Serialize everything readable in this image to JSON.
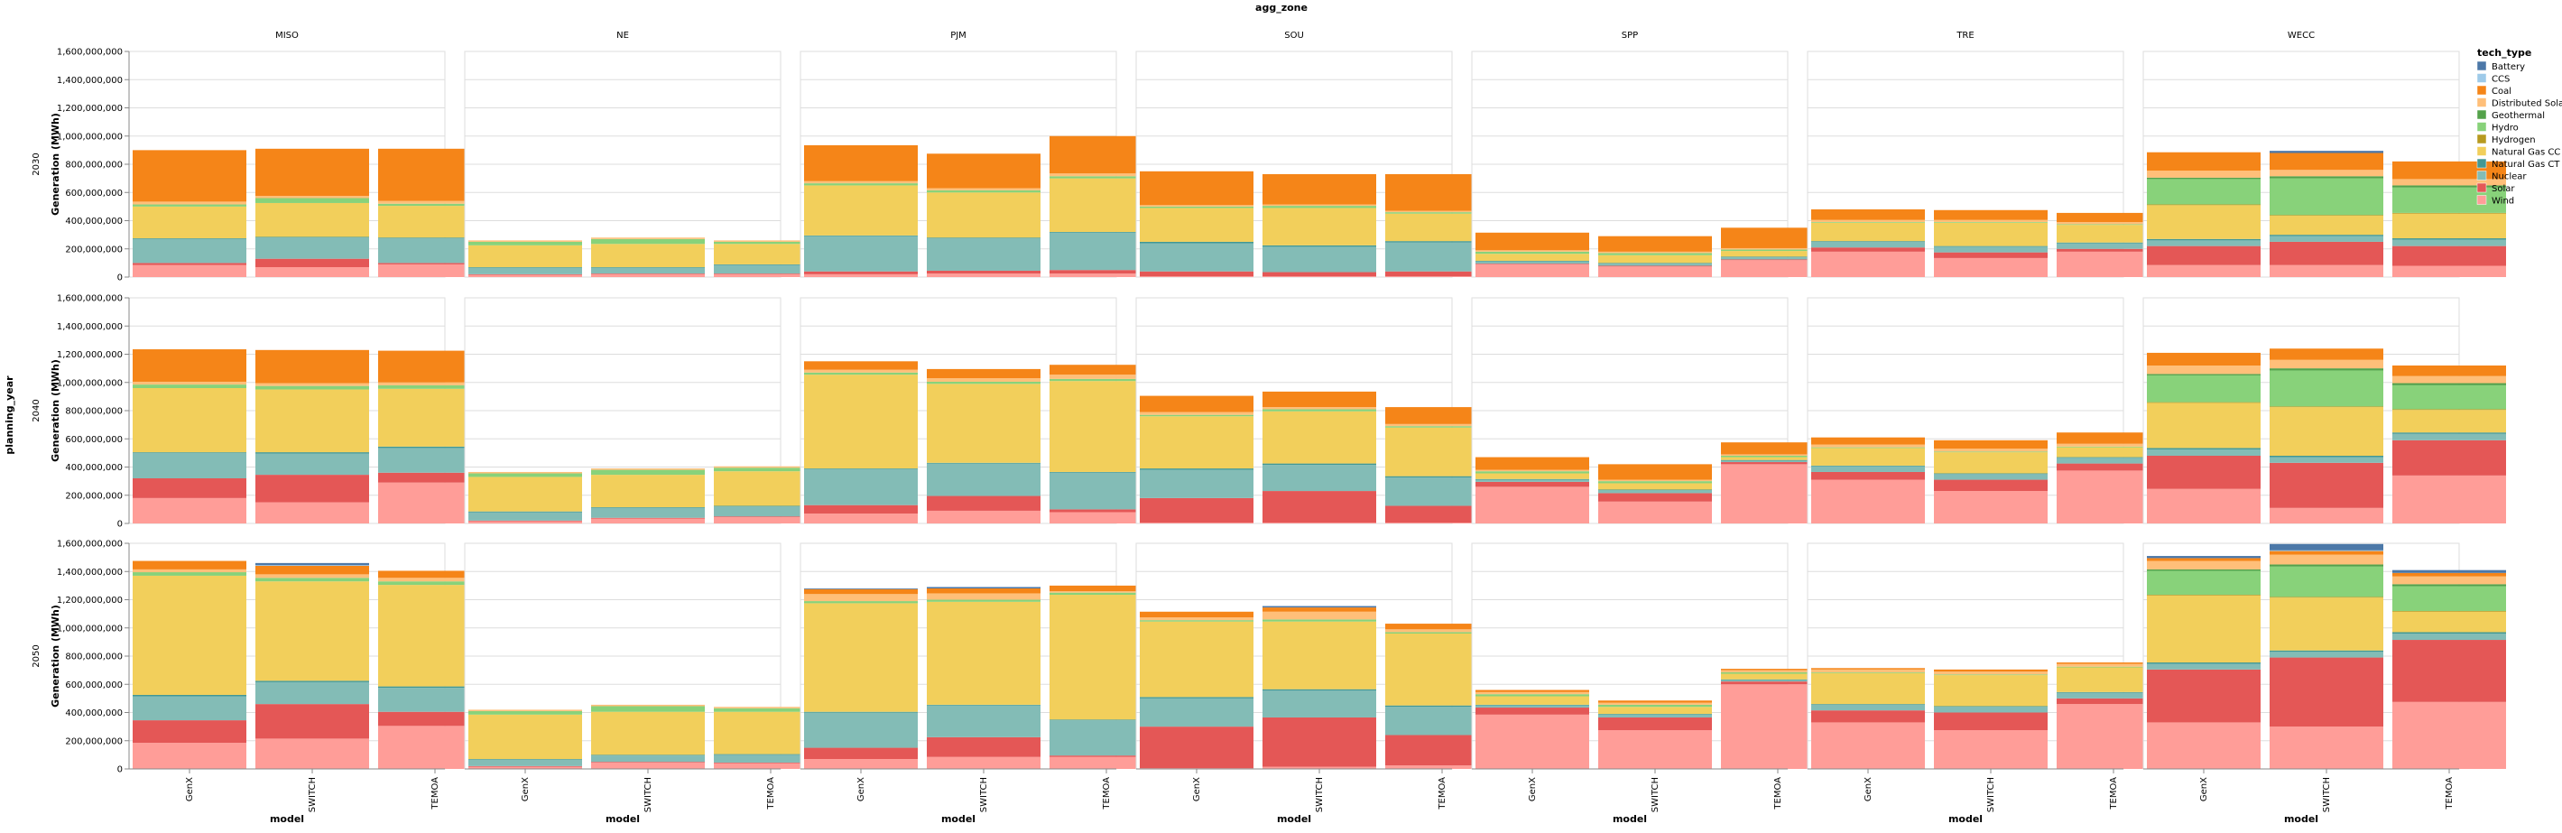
{
  "chart_data": {
    "type": "stacked-bar-faceted",
    "column_facet_title": "agg_zone",
    "row_facet_title": "planning_year",
    "x_title": "model",
    "y_title": "Generation (MWh)",
    "y_domain": [
      0,
      1600000000
    ],
    "y_ticks": [
      "0",
      "200,000,000",
      "400,000,000",
      "600,000,000",
      "800,000,000",
      "1,000,000,000",
      "1,200,000,000",
      "1,400,000,000",
      "1,600,000,000"
    ],
    "zones": [
      "MISO",
      "NE",
      "PJM",
      "SOU",
      "SPP",
      "TRE",
      "WECC"
    ],
    "years": [
      "2030",
      "2040",
      "2050"
    ],
    "models": [
      "GenX",
      "SWITCH",
      "TEMOA"
    ],
    "legend_title": "tech_type",
    "tech_types": [
      "Battery",
      "CCS",
      "Coal",
      "Distributed Solar",
      "Geothermal",
      "Hydro",
      "Hydrogen",
      "Natural Gas CC",
      "Natural Gas CT",
      "Nuclear",
      "Solar",
      "Wind"
    ],
    "colors": {
      "Battery": "#4c78a8",
      "CCS": "#9ecae9",
      "Coal": "#f58518",
      "Distributed Solar": "#ffbf79",
      "Geothermal": "#54a24b",
      "Hydro": "#88d27a",
      "Hydrogen": "#b79a20",
      "Natural Gas CC": "#f2cf5b",
      "Natural Gas CT": "#439894",
      "Nuclear": "#83bcb6",
      "Solar": "#e45756",
      "Wind": "#ff9d98"
    },
    "stack_order_bottom_up": [
      "Wind",
      "Solar",
      "Nuclear",
      "Natural Gas CT",
      "Natural Gas CC",
      "Hydrogen",
      "Hydro",
      "Geothermal",
      "Distributed Solar",
      "Coal",
      "CCS",
      "Battery"
    ],
    "units": "million MWh",
    "data": {
      "2030": {
        "MISO": {
          "GenX": {
            "Wind": 85,
            "Solar": 15,
            "Nuclear": 170,
            "Natural Gas CT": 5,
            "Natural Gas CC": 225,
            "Hydro": 15,
            "Geothermal": 0,
            "Distributed Solar": 20,
            "Coal": 365
          },
          "SWITCH": {
            "Wind": 70,
            "Solar": 60,
            "Nuclear": 150,
            "Natural Gas CT": 5,
            "Natural Gas CC": 240,
            "Hydro": 35,
            "Geothermal": 0,
            "Distributed Solar": 15,
            "Coal": 335
          },
          "TEMOA": {
            "Wind": 90,
            "Solar": 10,
            "Nuclear": 175,
            "Natural Gas CT": 5,
            "Natural Gas CC": 225,
            "Hydro": 15,
            "Geothermal": 0,
            "Distributed Solar": 20,
            "Coal": 370
          }
        },
        "NE": {
          "GenX": {
            "Wind": 15,
            "Solar": 5,
            "Nuclear": 45,
            "Natural Gas CT": 5,
            "Natural Gas CC": 155,
            "Hydro": 25,
            "Distributed Solar": 10
          },
          "SWITCH": {
            "Wind": 20,
            "Solar": 5,
            "Nuclear": 40,
            "Natural Gas CT": 5,
            "Natural Gas CC": 165,
            "Hydro": 35,
            "Distributed Solar": 10
          },
          "TEMOA": {
            "Wind": 20,
            "Solar": 5,
            "Nuclear": 60,
            "Natural Gas CT": 5,
            "Natural Gas CC": 145,
            "Hydro": 15,
            "Distributed Solar": 10
          }
        },
        "PJM": {
          "GenX": {
            "Wind": 20,
            "Solar": 20,
            "Nuclear": 250,
            "Natural Gas CT": 5,
            "Natural Gas CC": 355,
            "Hydro": 15,
            "Distributed Solar": 15,
            "Coal": 255
          },
          "SWITCH": {
            "Wind": 25,
            "Solar": 20,
            "Nuclear": 230,
            "Natural Gas CT": 5,
            "Natural Gas CC": 320,
            "Hydro": 15,
            "Distributed Solar": 15,
            "Coal": 245
          },
          "TEMOA": {
            "Wind": 25,
            "Solar": 25,
            "Nuclear": 265,
            "Natural Gas CT": 5,
            "Natural Gas CC": 380,
            "Hydro": 15,
            "Distributed Solar": 20,
            "Coal": 265
          }
        },
        "SOU": {
          "GenX": {
            "Wind": 5,
            "Solar": 35,
            "Nuclear": 200,
            "Natural Gas CT": 10,
            "Natural Gas CC": 240,
            "Hydro": 10,
            "Distributed Solar": 10,
            "Coal": 240
          },
          "SWITCH": {
            "Wind": 5,
            "Solar": 30,
            "Nuclear": 180,
            "Natural Gas CT": 10,
            "Natural Gas CC": 265,
            "Hydro": 15,
            "Distributed Solar": 10,
            "Coal": 215
          },
          "TEMOA": {
            "Wind": 5,
            "Solar": 35,
            "Nuclear": 205,
            "Natural Gas CT": 10,
            "Natural Gas CC": 195,
            "Hydro": 10,
            "Distributed Solar": 10,
            "Coal": 260
          }
        },
        "SPP": {
          "GenX": {
            "Wind": 90,
            "Solar": 5,
            "Nuclear": 15,
            "Natural Gas CT": 5,
            "Natural Gas CC": 50,
            "Hydro": 15,
            "Distributed Solar": 10,
            "Coal": 125
          },
          "SWITCH": {
            "Wind": 75,
            "Solar": 5,
            "Nuclear": 15,
            "Natural Gas CT": 5,
            "Natural Gas CC": 55,
            "Hydro": 15,
            "Distributed Solar": 10,
            "Coal": 110
          },
          "TEMOA": {
            "Wind": 120,
            "Solar": 5,
            "Nuclear": 15,
            "Natural Gas CT": 5,
            "Natural Gas CC": 40,
            "Hydro": 10,
            "Distributed Solar": 10,
            "Coal": 145
          }
        },
        "TRE": {
          "GenX": {
            "Wind": 180,
            "Solar": 30,
            "Nuclear": 40,
            "Natural Gas CT": 5,
            "Natural Gas CC": 130,
            "Hydro": 5,
            "Distributed Solar": 15,
            "Coal": 75
          },
          "SWITCH": {
            "Wind": 135,
            "Solar": 40,
            "Nuclear": 40,
            "Natural Gas CT": 5,
            "Natural Gas CC": 165,
            "Hydro": 5,
            "Distributed Solar": 15,
            "Coal": 70
          },
          "TEMOA": {
            "Wind": 180,
            "Solar": 20,
            "Nuclear": 40,
            "Natural Gas CT": 5,
            "Natural Gas CC": 125,
            "Hydro": 5,
            "Distributed Solar": 15,
            "Coal": 65
          }
        },
        "WECC": {
          "GenX": {
            "Wind": 85,
            "Solar": 135,
            "Nuclear": 40,
            "Natural Gas CT": 10,
            "Natural Gas CC": 240,
            "Hydrogen": 5,
            "Hydro": 180,
            "Geothermal": 10,
            "Distributed Solar": 50,
            "Coal": 130
          },
          "SWITCH": {
            "Wind": 85,
            "Solar": 165,
            "Nuclear": 40,
            "Natural Gas CT": 10,
            "Natural Gas CC": 135,
            "Hydrogen": 5,
            "Hydro": 260,
            "Geothermal": 15,
            "Distributed Solar": 45,
            "Coal": 120,
            "Battery": 15
          },
          "TEMOA": {
            "Wind": 80,
            "Solar": 140,
            "Nuclear": 45,
            "Natural Gas CT": 10,
            "Natural Gas CC": 175,
            "Hydrogen": 5,
            "Hydro": 180,
            "Geothermal": 15,
            "Distributed Solar": 45,
            "Coal": 125
          }
        }
      },
      "2040": {
        "MISO": {
          "GenX": {
            "Wind": 180,
            "Solar": 140,
            "Nuclear": 180,
            "Natural Gas CT": 5,
            "Natural Gas CC": 455,
            "Hydro": 25,
            "Distributed Solar": 20,
            "Coal": 230
          },
          "SWITCH": {
            "Wind": 150,
            "Solar": 195,
            "Nuclear": 150,
            "Natural Gas CT": 10,
            "Natural Gas CC": 445,
            "Hydro": 25,
            "Distributed Solar": 20,
            "Coal": 235
          },
          "TEMOA": {
            "Wind": 290,
            "Solar": 70,
            "Nuclear": 175,
            "Natural Gas CT": 10,
            "Natural Gas CC": 410,
            "Hydro": 25,
            "Distributed Solar": 20,
            "Coal": 225
          }
        },
        "NE": {
          "GenX": {
            "Wind": 15,
            "Solar": 5,
            "Nuclear": 60,
            "Natural Gas CT": 5,
            "Natural Gas CC": 245,
            "Hydro": 25,
            "Distributed Solar": 10
          },
          "SWITCH": {
            "Wind": 35,
            "Solar": 5,
            "Nuclear": 70,
            "Natural Gas CT": 5,
            "Natural Gas CC": 230,
            "Hydro": 35,
            "Distributed Solar": 10
          },
          "TEMOA": {
            "Wind": 45,
            "Solar": 5,
            "Nuclear": 70,
            "Natural Gas CT": 5,
            "Natural Gas CC": 245,
            "Hydro": 25,
            "Distributed Solar": 10
          }
        },
        "PJM": {
          "GenX": {
            "Wind": 70,
            "Solar": 60,
            "Nuclear": 255,
            "Natural Gas CT": 5,
            "Natural Gas CC": 665,
            "Hydro": 15,
            "Distributed Solar": 20,
            "Coal": 60
          },
          "SWITCH": {
            "Wind": 90,
            "Solar": 105,
            "Nuclear": 230,
            "Natural Gas CT": 5,
            "Natural Gas CC": 560,
            "Hydro": 15,
            "Distributed Solar": 25,
            "Coal": 65
          },
          "TEMOA": {
            "Wind": 80,
            "Solar": 20,
            "Nuclear": 260,
            "Natural Gas CT": 5,
            "Natural Gas CC": 645,
            "Hydro": 15,
            "Distributed Solar": 30,
            "Coal": 70
          }
        },
        "SOU": {
          "GenX": {
            "Wind": 5,
            "Solar": 175,
            "Nuclear": 200,
            "Natural Gas CT": 10,
            "Natural Gas CC": 370,
            "Hydro": 10,
            "Distributed Solar": 20,
            "Coal": 115
          },
          "SWITCH": {
            "Wind": 5,
            "Solar": 225,
            "Nuclear": 185,
            "Natural Gas CT": 10,
            "Natural Gas CC": 370,
            "Hydro": 15,
            "Distributed Solar": 15,
            "Coal": 110
          },
          "TEMOA": {
            "Wind": 5,
            "Solar": 120,
            "Nuclear": 200,
            "Natural Gas CT": 10,
            "Natural Gas CC": 345,
            "Hydro": 10,
            "Distributed Solar": 15,
            "Coal": 120
          }
        },
        "SPP": {
          "GenX": {
            "Wind": 260,
            "Solar": 35,
            "Nuclear": 15,
            "Natural Gas CT": 5,
            "Natural Gas CC": 40,
            "Hydro": 15,
            "Distributed Solar": 10,
            "Coal": 90
          },
          "SWITCH": {
            "Wind": 155,
            "Solar": 60,
            "Nuclear": 20,
            "Natural Gas CT": 5,
            "Natural Gas CC": 45,
            "Hydro": 15,
            "Distributed Solar": 10,
            "Coal": 110
          },
          "TEMOA": {
            "Wind": 420,
            "Solar": 15,
            "Nuclear": 10,
            "Natural Gas CT": 5,
            "Natural Gas CC": 20,
            "Hydro": 10,
            "Distributed Solar": 10,
            "Coal": 85
          }
        },
        "TRE": {
          "GenX": {
            "Wind": 310,
            "Solar": 55,
            "Nuclear": 40,
            "Natural Gas CT": 5,
            "Natural Gas CC": 125,
            "Hydro": 5,
            "Distributed Solar": 20,
            "Coal": 50
          },
          "SWITCH": {
            "Wind": 230,
            "Solar": 80,
            "Nuclear": 40,
            "Natural Gas CT": 5,
            "Natural Gas CC": 150,
            "Hydro": 5,
            "Distributed Solar": 20,
            "Coal": 60
          },
          "TEMOA": {
            "Wind": 375,
            "Solar": 50,
            "Nuclear": 40,
            "Natural Gas CT": 5,
            "Natural Gas CC": 70,
            "Hydro": 5,
            "Distributed Solar": 20,
            "Coal": 80
          }
        },
        "WECC": {
          "GenX": {
            "Wind": 245,
            "Solar": 235,
            "Nuclear": 45,
            "Natural Gas CT": 10,
            "Natural Gas CC": 320,
            "Hydrogen": 5,
            "Hydro": 190,
            "Geothermal": 10,
            "Distributed Solar": 60,
            "Coal": 90
          },
          "SWITCH": {
            "Wind": 110,
            "Solar": 320,
            "Nuclear": 40,
            "Natural Gas CT": 10,
            "Natural Gas CC": 345,
            "Hydrogen": 5,
            "Hydro": 255,
            "Geothermal": 15,
            "Distributed Solar": 60,
            "Coal": 80
          },
          "TEMOA": {
            "Wind": 340,
            "Solar": 250,
            "Nuclear": 45,
            "Natural Gas CT": 10,
            "Natural Gas CC": 160,
            "Hydrogen": 5,
            "Hydro": 170,
            "Geothermal": 15,
            "Distributed Solar": 50,
            "Coal": 75
          }
        }
      },
      "2050": {
        "MISO": {
          "GenX": {
            "Wind": 185,
            "Solar": 160,
            "Nuclear": 170,
            "Natural Gas CT": 10,
            "Natural Gas CC": 845,
            "Hydro": 25,
            "Distributed Solar": 20,
            "Coal": 60
          },
          "SWITCH": {
            "Wind": 215,
            "Solar": 245,
            "Nuclear": 155,
            "Natural Gas CT": 10,
            "Natural Gas CC": 705,
            "Hydro": 25,
            "Distributed Solar": 25,
            "Coal": 60,
            "CCS": 5,
            "Battery": 15
          },
          "TEMOA": {
            "Wind": 305,
            "Solar": 100,
            "Nuclear": 170,
            "Natural Gas CT": 10,
            "Natural Gas CC": 720,
            "Hydro": 25,
            "Distributed Solar": 25,
            "Coal": 50
          }
        },
        "NE": {
          "GenX": {
            "Wind": 15,
            "Solar": 5,
            "Nuclear": 45,
            "Natural Gas CT": 5,
            "Natural Gas CC": 315,
            "Hydro": 25,
            "Distributed Solar": 10
          },
          "SWITCH": {
            "Wind": 45,
            "Solar": 5,
            "Nuclear": 45,
            "Natural Gas CT": 5,
            "Natural Gas CC": 305,
            "Hydro": 40,
            "Distributed Solar": 10
          },
          "TEMOA": {
            "Wind": 40,
            "Solar": 5,
            "Nuclear": 55,
            "Natural Gas CT": 5,
            "Natural Gas CC": 300,
            "Hydro": 25,
            "Distributed Solar": 10
          }
        },
        "PJM": {
          "GenX": {
            "Wind": 70,
            "Solar": 80,
            "Nuclear": 250,
            "Natural Gas CT": 5,
            "Natural Gas CC": 770,
            "Hydro": 15,
            "Distributed Solar": 50,
            "Coal": 35,
            "Battery": 5
          },
          "SWITCH": {
            "Wind": 85,
            "Solar": 140,
            "Nuclear": 225,
            "Natural Gas CT": 5,
            "Natural Gas CC": 730,
            "Hydro": 15,
            "Distributed Solar": 45,
            "Coal": 35,
            "Battery": 10
          },
          "TEMOA": {
            "Wind": 85,
            "Solar": 10,
            "Nuclear": 250,
            "Natural Gas CT": 5,
            "Natural Gas CC": 885,
            "Hydro": 15,
            "Distributed Solar": 10,
            "Coal": 40
          }
        },
        "SOU": {
          "GenX": {
            "Wind": 5,
            "Solar": 295,
            "Nuclear": 200,
            "Natural Gas CT": 10,
            "Natural Gas CC": 535,
            "Hydro": 10,
            "Distributed Solar": 20,
            "Coal": 40
          },
          "SWITCH": {
            "Wind": 15,
            "Solar": 350,
            "Nuclear": 190,
            "Natural Gas CT": 10,
            "Natural Gas CC": 480,
            "Hydro": 15,
            "Distributed Solar": 55,
            "Coal": 30,
            "Battery": 10
          },
          "TEMOA": {
            "Wind": 25,
            "Solar": 215,
            "Nuclear": 200,
            "Natural Gas CT": 10,
            "Natural Gas CC": 510,
            "Hydro": 10,
            "Distributed Solar": 20,
            "Coal": 40
          }
        },
        "SPP": {
          "GenX": {
            "Wind": 385,
            "Solar": 50,
            "Nuclear": 15,
            "Natural Gas CT": 5,
            "Natural Gas CC": 60,
            "Hydro": 15,
            "Distributed Solar": 15,
            "Coal": 15
          },
          "SWITCH": {
            "Wind": 275,
            "Solar": 90,
            "Nuclear": 20,
            "Natural Gas CT": 5,
            "Natural Gas CC": 50,
            "Hydro": 15,
            "Distributed Solar": 15,
            "Coal": 15
          },
          "TEMOA": {
            "Wind": 600,
            "Solar": 20,
            "Nuclear": 10,
            "Natural Gas CT": 5,
            "Natural Gas CC": 40,
            "Hydro": 10,
            "Distributed Solar": 15,
            "Coal": 10
          }
        },
        "TRE": {
          "GenX": {
            "Wind": 330,
            "Solar": 85,
            "Nuclear": 40,
            "Natural Gas CT": 5,
            "Natural Gas CC": 220,
            "Hydro": 5,
            "Distributed Solar": 20,
            "Coal": 10
          },
          "SWITCH": {
            "Wind": 275,
            "Solar": 125,
            "Nuclear": 40,
            "Natural Gas CT": 5,
            "Natural Gas CC": 220,
            "Hydro": 5,
            "Distributed Solar": 20,
            "Coal": 15
          },
          "TEMOA": {
            "Wind": 460,
            "Solar": 40,
            "Nuclear": 40,
            "Natural Gas CT": 5,
            "Natural Gas CC": 175,
            "Hydro": 5,
            "Distributed Solar": 20,
            "Coal": 10
          }
        },
        "WECC": {
          "GenX": {
            "Wind": 330,
            "Solar": 375,
            "Nuclear": 40,
            "Natural Gas CT": 10,
            "Natural Gas CC": 475,
            "Hydrogen": 5,
            "Hydro": 170,
            "Geothermal": 10,
            "Distributed Solar": 60,
            "Coal": 20,
            "Battery": 15
          },
          "SWITCH": {
            "Wind": 300,
            "Solar": 490,
            "Nuclear": 40,
            "Natural Gas CT": 10,
            "Natural Gas CC": 375,
            "Hydrogen": 5,
            "Hydro": 215,
            "Geothermal": 15,
            "Distributed Solar": 70,
            "Coal": 25,
            "CCS": 5,
            "Battery": 45
          },
          "TEMOA": {
            "Wind": 475,
            "Solar": 440,
            "Nuclear": 45,
            "Natural Gas CT": 10,
            "Natural Gas CC": 145,
            "Hydrogen": 5,
            "Hydro": 175,
            "Geothermal": 15,
            "Distributed Solar": 55,
            "Coal": 25,
            "Battery": 20
          }
        }
      }
    }
  }
}
